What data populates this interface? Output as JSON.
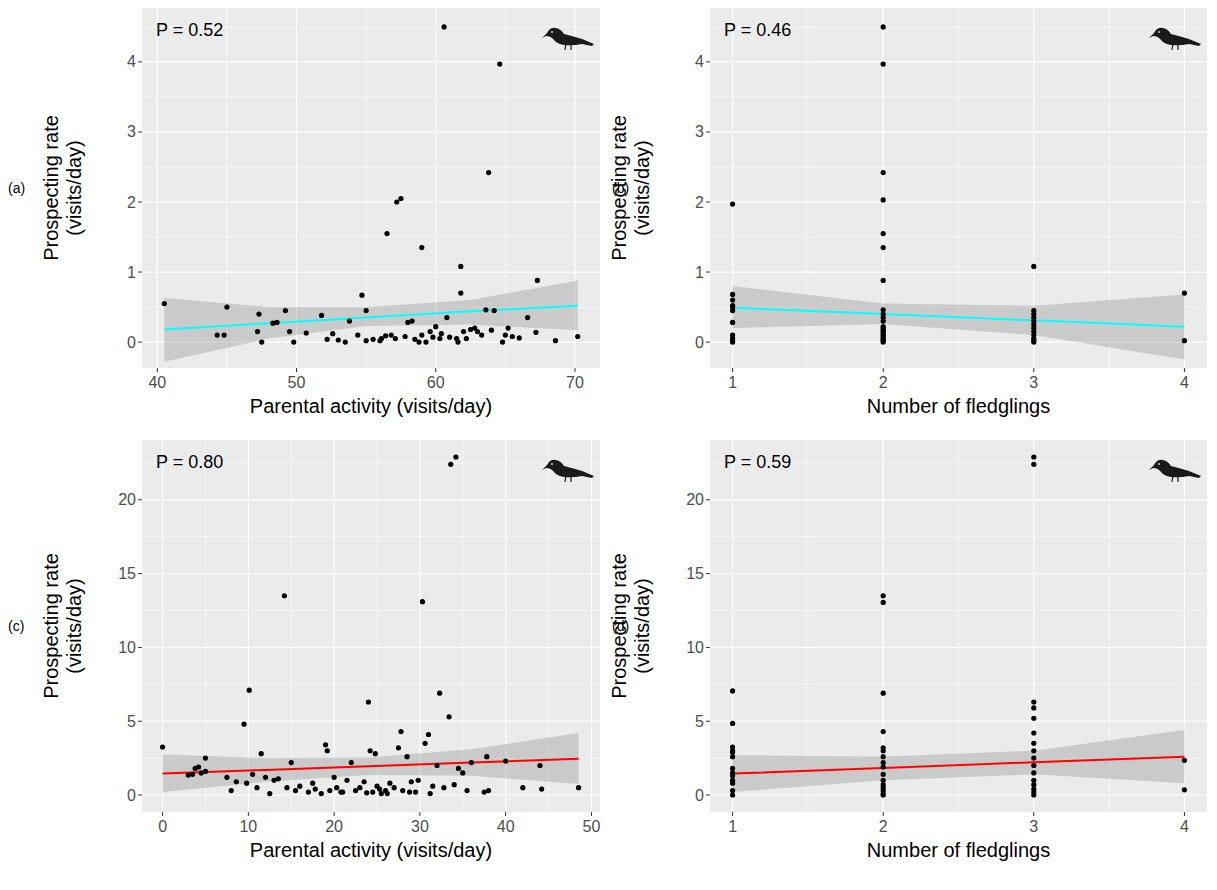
{
  "chart_data": [
    {
      "type": "scatter",
      "panel_label": "(a)",
      "annotation": "P = 0.52",
      "xlabel": "Parental activity (visits/day)",
      "ylabel": "Prospecting rate (visits/day)",
      "xlim": [
        38.9,
        71.8
      ],
      "ylim": [
        -0.37,
        4.77
      ],
      "xticks": [
        40,
        50,
        60,
        70
      ],
      "yticks": [
        0,
        1,
        2,
        3,
        4
      ],
      "grid": true,
      "series": [
        {
          "type": "scatter",
          "color": "#000000",
          "marker": "circle",
          "x": [
            40.5,
            44.3,
            44.8,
            45,
            47.3,
            47.2,
            47.5,
            48.3,
            48.6,
            49.2,
            49.5,
            49.8,
            50.7,
            51.8,
            52.2,
            52.6,
            53,
            53.5,
            54.4,
            54.7,
            55,
            55,
            55.5,
            56.1,
            56.5,
            56.4,
            56.8,
            57.1,
            57.2,
            57.5,
            57.8,
            58,
            58.3,
            58.5,
            59,
            59,
            59.3,
            59.6,
            59.8,
            60,
            60.3,
            60.6,
            60.8,
            61,
            61.5,
            61.6,
            61.8,
            61.8,
            62,
            62.2,
            62.5,
            62.8,
            63,
            63.3,
            63.6,
            63.8,
            64,
            64.2,
            64.6,
            64.8,
            65,
            65.2,
            65.5,
            66,
            66.6,
            67.2,
            67.3,
            68.6,
            70.2,
            53.8,
            56,
            58.8,
            60.4
          ],
          "values": [
            0.55,
            0.1,
            0.1,
            0.5,
            0.4,
            0.15,
            0,
            0.27,
            0.28,
            0.45,
            0.15,
            0,
            0.13,
            0.38,
            0.04,
            0.12,
            0.03,
            0,
            0.1,
            0.67,
            0.45,
            0.02,
            0.04,
            0.05,
            1.55,
            0.09,
            0.1,
            0.05,
            2,
            2.05,
            0.08,
            0.28,
            0.3,
            0.04,
            1.35,
            0.1,
            0,
            0.15,
            0.07,
            0.22,
            0.05,
            4.5,
            0.35,
            0.07,
            0.05,
            0,
            0.7,
            1.08,
            0.15,
            0.05,
            0.18,
            0.2,
            0.15,
            0.1,
            0.46,
            2.42,
            0.17,
            0.45,
            3.97,
            0,
            0.1,
            0.2,
            0.08,
            0.06,
            0.35,
            0.14,
            0.88,
            0.02,
            0.08,
            0.3,
            0.02,
            0,
            0.12
          ]
        },
        {
          "type": "line",
          "color": "#00FFFF",
          "x": [
            40.5,
            48,
            55,
            62.5,
            70.2
          ],
          "values": [
            0.18,
            0.27,
            0.35,
            0.44,
            0.52
          ],
          "lower": [
            -0.28,
            0.05,
            0.23,
            0.25,
            0.17
          ],
          "upper": [
            0.63,
            0.5,
            0.5,
            0.6,
            0.88
          ]
        }
      ]
    },
    {
      "type": "scatter",
      "panel_label": "(b)",
      "annotation": "P = 0.46",
      "xlabel": "Number of fledglings",
      "ylabel": "Prospecting rate (visits/day)",
      "xlim": [
        0.85,
        4.15
      ],
      "ylim": [
        -0.37,
        4.77
      ],
      "xticks": [
        1,
        2,
        3,
        4
      ],
      "yticks": [
        0,
        1,
        2,
        3,
        4
      ],
      "grid": true,
      "series": [
        {
          "type": "scatter",
          "color": "#000000",
          "marker": "circle",
          "x": [
            1,
            1,
            1,
            1,
            1,
            1,
            1,
            1,
            1,
            1,
            1,
            2,
            2,
            2,
            2,
            2,
            2,
            2,
            2,
            2,
            2,
            2,
            2,
            2,
            2,
            2,
            2,
            2,
            2,
            2,
            2,
            2,
            2,
            3,
            3,
            3,
            3,
            3,
            3,
            3,
            3,
            3,
            3,
            3,
            3,
            4,
            4
          ],
          "values": [
            1.97,
            0.68,
            0.6,
            0.52,
            0.5,
            0.45,
            0.28,
            0.1,
            0.05,
            0.02,
            0,
            4.5,
            3.97,
            2.42,
            2.03,
            1.55,
            1.35,
            0.88,
            0.46,
            0.4,
            0.35,
            0.3,
            0.22,
            0.2,
            0.17,
            0.15,
            0.12,
            0.1,
            0.08,
            0.05,
            0.04,
            0.02,
            0,
            1.08,
            0.45,
            0.4,
            0.35,
            0.3,
            0.25,
            0.2,
            0.15,
            0.1,
            0.05,
            0.02,
            0,
            0.7,
            0.02
          ]
        },
        {
          "type": "line",
          "color": "#00FFFF",
          "x": [
            1,
            2,
            3,
            4
          ],
          "values": [
            0.49,
            0.4,
            0.31,
            0.22
          ],
          "lower": [
            0.2,
            0.26,
            0.1,
            -0.25
          ],
          "upper": [
            0.8,
            0.55,
            0.52,
            0.68
          ]
        }
      ]
    },
    {
      "type": "scatter",
      "panel_label": "(c)",
      "annotation": "P = 0.80",
      "xlabel": "Parental activity (visits/day)",
      "ylabel": "Prospecting rate (visits/day)",
      "xlim": [
        -2.4,
        51
      ],
      "ylim": [
        -1.15,
        24.05
      ],
      "xticks": [
        0,
        10,
        20,
        30,
        40,
        50
      ],
      "yticks": [
        0,
        5,
        10,
        15,
        20
      ],
      "grid": true,
      "series": [
        {
          "type": "scatter",
          "color": "#000000",
          "marker": "circle",
          "x": [
            0,
            3,
            3.5,
            3.8,
            4.2,
            4.5,
            5,
            5,
            7.5,
            8,
            8.6,
            9.5,
            9.8,
            10.1,
            10.5,
            11,
            11.5,
            12,
            12.5,
            13,
            13.5,
            14.2,
            14.5,
            15,
            15.5,
            16,
            17,
            17.5,
            18.5,
            19,
            19.2,
            19.5,
            20,
            20.3,
            21,
            21.5,
            22,
            22.5,
            23,
            23.5,
            24,
            24.2,
            24.5,
            24.8,
            25,
            25.3,
            25.5,
            26,
            26.5,
            27,
            27.5,
            27.8,
            28,
            28.5,
            29,
            29.5,
            29.8,
            30.3,
            30.6,
            31,
            31.5,
            32,
            32.3,
            32.8,
            33.4,
            33.6,
            34.2,
            34.5,
            34,
            35,
            35.5,
            36,
            37.5,
            37.8,
            38,
            40,
            42,
            44,
            44.2,
            48.5,
            26.2,
            28.8,
            31.2,
            23.8,
            20.8,
            17.8
          ],
          "values": [
            3.25,
            1.35,
            1.4,
            1.8,
            1.9,
            1.5,
            2.5,
            1.6,
            1.2,
            0.3,
            0.9,
            4.8,
            0.8,
            7.1,
            1.4,
            0.5,
            2.8,
            1.2,
            0.1,
            1,
            1.1,
            13.5,
            0.5,
            2.2,
            0.3,
            0.6,
            0.2,
            0.8,
            0.1,
            3.4,
            3,
            0.3,
            1.2,
            0.5,
            0.2,
            1,
            2.2,
            0.3,
            0.5,
            0.9,
            6.3,
            3,
            0.2,
            2.8,
            0.6,
            0.4,
            0.1,
            0.3,
            0.8,
            0.5,
            3.2,
            4.3,
            0.3,
            2.6,
            0.9,
            0.2,
            1,
            13.1,
            3.5,
            4.1,
            0.6,
            2,
            6.9,
            0.5,
            5.3,
            22.4,
            22.9,
            1.8,
            0.7,
            1.5,
            0.3,
            2.2,
            0.2,
            2.6,
            0.3,
            2.3,
            0.5,
            2,
            0.4,
            0.5,
            0.1,
            0.2,
            0.1,
            0.15,
            0.2,
            0.4
          ]
        },
        {
          "type": "line",
          "color": "#FF0000",
          "x": [
            0,
            12,
            24,
            36,
            48.5
          ],
          "values": [
            1.45,
            1.7,
            1.95,
            2.2,
            2.45
          ],
          "lower": [
            0.2,
            0.9,
            1.35,
            1.3,
            0.75
          ],
          "upper": [
            2.75,
            2.5,
            2.55,
            3.1,
            4.2
          ]
        }
      ]
    },
    {
      "type": "scatter",
      "panel_label": "(d)",
      "annotation": "P = 0.59",
      "xlabel": "Number of fledglings",
      "ylabel": "Prospecting rate (visits/day)",
      "xlim": [
        0.85,
        4.15
      ],
      "ylim": [
        -1.15,
        24.05
      ],
      "xticks": [
        1,
        2,
        3,
        4
      ],
      "yticks": [
        0,
        5,
        10,
        15,
        20
      ],
      "grid": true,
      "series": [
        {
          "type": "scatter",
          "color": "#000000",
          "marker": "circle",
          "x": [
            1,
            1,
            1,
            1,
            1,
            1,
            1,
            1,
            1,
            1,
            1,
            1,
            1,
            2,
            2,
            2,
            2,
            2,
            2,
            2,
            2,
            2,
            2,
            2,
            2,
            2,
            2,
            2,
            2,
            3,
            3,
            3,
            3,
            3,
            3,
            3,
            3,
            3,
            3,
            3,
            3,
            3,
            3,
            3,
            3,
            4,
            4
          ],
          "values": [
            7.05,
            4.85,
            3.25,
            3,
            2.9,
            2.6,
            1.8,
            1.5,
            1.3,
            1,
            0.8,
            0.3,
            0,
            13.5,
            13.05,
            6.9,
            4.3,
            3.2,
            3,
            2.6,
            2.2,
            1.9,
            1.4,
            1,
            0.7,
            0.5,
            0.3,
            0.1,
            0,
            22.9,
            22.4,
            6.3,
            5.9,
            5.2,
            4.2,
            3.5,
            3,
            2.5,
            2,
            1.5,
            1,
            0.7,
            0.4,
            0.2,
            0,
            2.35,
            0.35
          ]
        },
        {
          "type": "line",
          "color": "#FF0000",
          "x": [
            1,
            2,
            3,
            4
          ],
          "values": [
            1.45,
            1.83,
            2.22,
            2.6
          ],
          "lower": [
            0.2,
            1,
            1.4,
            0.8
          ],
          "upper": [
            2.7,
            2.6,
            3,
            4.4
          ]
        }
      ]
    }
  ]
}
